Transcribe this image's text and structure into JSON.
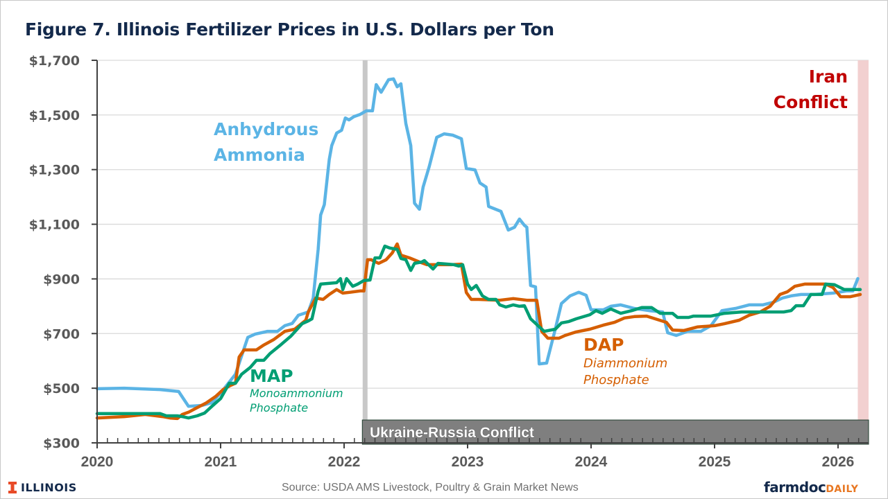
{
  "colors": {
    "anhydrous": "#5bb4e5",
    "dap": "#d55e00",
    "map": "#009e73",
    "title": "#13294b",
    "iran": "#c00000",
    "iran_shade": "#f2d0d0",
    "ukraine_box": "#7f7f7f",
    "ukraine_line": "#c8c8c8",
    "axis_text": "#595959",
    "daily": "#e87722"
  },
  "footer": {
    "logo_left": "ILLINOIS",
    "source": "Source: USDA AMS Livestock, Poultry & Grain Market News",
    "logo_right_main": "farmdoc",
    "logo_right_accent": "DAILY"
  },
  "chart_data": {
    "type": "line",
    "title": "Figure 7. Illinois Fertilizer Prices in U.S. Dollars per Ton",
    "xlabel": "",
    "ylabel": "",
    "xlim": [
      2020,
      2026.25
    ],
    "ylim": [
      300,
      1700
    ],
    "x_ticks": [
      2020,
      2021,
      2022,
      2023,
      2024,
      2025,
      2026
    ],
    "x_tick_labels": [
      "2020",
      "2021",
      "2022",
      "2023",
      "2024",
      "2025",
      "2026"
    ],
    "y_ticks": [
      300,
      500,
      700,
      900,
      1100,
      1300,
      1500,
      1700
    ],
    "y_tick_labels": [
      "$300",
      "$500",
      "$700",
      "$900",
      "$1,100",
      "$1,300",
      "$1,500",
      "$1,700"
    ],
    "grid": "horizontal",
    "legend": "none (inline labels)",
    "annotations": {
      "anhydrous_line1": "Anhydrous",
      "anhydrous_line2": "Ammonia",
      "map_title": "MAP",
      "map_sub1": "Monoammonium",
      "map_sub2": "Phosphate",
      "dap_title": "DAP",
      "dap_sub1": "Diammonium",
      "dap_sub2": "Phosphate",
      "iran_line1": "Iran",
      "iran_line2": "Conflict",
      "ukraine": "Ukraine-Russia Conflict"
    },
    "events": {
      "ukraine_start": 2022.17,
      "iran_start": 2026.16
    },
    "series": [
      {
        "name": "Anhydrous Ammonia",
        "key": "anhydrous",
        "points": [
          [
            2020.0,
            498
          ],
          [
            2020.22,
            500
          ],
          [
            2020.51,
            495
          ],
          [
            2020.62,
            490
          ],
          [
            2020.66,
            488
          ],
          [
            2020.74,
            434
          ],
          [
            2020.85,
            437
          ],
          [
            2020.93,
            447
          ],
          [
            2021.01,
            488
          ],
          [
            2021.12,
            551
          ],
          [
            2021.22,
            686
          ],
          [
            2021.28,
            698
          ],
          [
            2021.38,
            708
          ],
          [
            2021.46,
            708
          ],
          [
            2021.52,
            729
          ],
          [
            2021.58,
            737
          ],
          [
            2021.63,
            767
          ],
          [
            2021.71,
            779
          ],
          [
            2021.75,
            830
          ],
          [
            2021.79,
            1008
          ],
          [
            2021.81,
            1134
          ],
          [
            2021.84,
            1172
          ],
          [
            2021.88,
            1337
          ],
          [
            2021.9,
            1388
          ],
          [
            2021.94,
            1434
          ],
          [
            2021.98,
            1444
          ],
          [
            2022.01,
            1489
          ],
          [
            2022.04,
            1482
          ],
          [
            2022.08,
            1494
          ],
          [
            2022.13,
            1502
          ],
          [
            2022.18,
            1515
          ],
          [
            2022.23,
            1515
          ],
          [
            2022.26,
            1611
          ],
          [
            2022.3,
            1583
          ],
          [
            2022.36,
            1629
          ],
          [
            2022.4,
            1632
          ],
          [
            2022.43,
            1603
          ],
          [
            2022.46,
            1614
          ],
          [
            2022.5,
            1469
          ],
          [
            2022.54,
            1388
          ],
          [
            2022.57,
            1177
          ],
          [
            2022.61,
            1155
          ],
          [
            2022.64,
            1236
          ],
          [
            2022.69,
            1312
          ],
          [
            2022.75,
            1418
          ],
          [
            2022.81,
            1431
          ],
          [
            2022.88,
            1426
          ],
          [
            2022.95,
            1413
          ],
          [
            2022.99,
            1304
          ],
          [
            2023.06,
            1299
          ],
          [
            2023.1,
            1251
          ],
          [
            2023.15,
            1236
          ],
          [
            2023.17,
            1165
          ],
          [
            2023.27,
            1147
          ],
          [
            2023.33,
            1079
          ],
          [
            2023.38,
            1089
          ],
          [
            2023.42,
            1119
          ],
          [
            2023.46,
            1096
          ],
          [
            2023.48,
            1089
          ],
          [
            2023.51,
            876
          ],
          [
            2023.55,
            871
          ],
          [
            2023.58,
            589
          ],
          [
            2023.64,
            592
          ],
          [
            2023.71,
            716
          ],
          [
            2023.76,
            810
          ],
          [
            2023.83,
            838
          ],
          [
            2023.9,
            851
          ],
          [
            2023.96,
            840
          ],
          [
            2024.0,
            787
          ],
          [
            2024.1,
            787
          ],
          [
            2024.16,
            800
          ],
          [
            2024.24,
            805
          ],
          [
            2024.35,
            792
          ],
          [
            2024.47,
            784
          ],
          [
            2024.58,
            779
          ],
          [
            2024.62,
            703
          ],
          [
            2024.69,
            693
          ],
          [
            2024.78,
            708
          ],
          [
            2024.89,
            708
          ],
          [
            2024.97,
            729
          ],
          [
            2025.06,
            784
          ],
          [
            2025.17,
            792
          ],
          [
            2025.28,
            805
          ],
          [
            2025.39,
            805
          ],
          [
            2025.48,
            815
          ],
          [
            2025.55,
            830
          ],
          [
            2025.62,
            838
          ],
          [
            2025.7,
            843
          ],
          [
            2025.81,
            843
          ],
          [
            2025.96,
            848
          ],
          [
            2026.07,
            856
          ],
          [
            2026.12,
            856
          ],
          [
            2026.16,
            901
          ]
        ]
      },
      {
        "name": "DAP (Diammonium Phosphate)",
        "key": "dap",
        "points": [
          [
            2020.0,
            391
          ],
          [
            2020.22,
            396
          ],
          [
            2020.39,
            404
          ],
          [
            2020.53,
            396
          ],
          [
            2020.59,
            391
          ],
          [
            2020.65,
            389
          ],
          [
            2020.69,
            404
          ],
          [
            2020.74,
            412
          ],
          [
            2020.81,
            429
          ],
          [
            2020.88,
            445
          ],
          [
            2020.96,
            470
          ],
          [
            2021.02,
            495
          ],
          [
            2021.07,
            508
          ],
          [
            2021.12,
            518
          ],
          [
            2021.15,
            614
          ],
          [
            2021.19,
            640
          ],
          [
            2021.29,
            640
          ],
          [
            2021.35,
            658
          ],
          [
            2021.43,
            678
          ],
          [
            2021.52,
            708
          ],
          [
            2021.6,
            716
          ],
          [
            2021.69,
            749
          ],
          [
            2021.71,
            779
          ],
          [
            2021.77,
            830
          ],
          [
            2021.83,
            825
          ],
          [
            2021.88,
            843
          ],
          [
            2021.94,
            861
          ],
          [
            2021.99,
            848
          ],
          [
            2022.05,
            851
          ],
          [
            2022.13,
            856
          ],
          [
            2022.16,
            856
          ],
          [
            2022.19,
            970
          ],
          [
            2022.22,
            970
          ],
          [
            2022.28,
            957
          ],
          [
            2022.34,
            970
          ],
          [
            2022.39,
            995
          ],
          [
            2022.43,
            1028
          ],
          [
            2022.46,
            987
          ],
          [
            2022.53,
            977
          ],
          [
            2022.61,
            962
          ],
          [
            2022.67,
            952
          ],
          [
            2022.87,
            952
          ],
          [
            2022.95,
            954
          ],
          [
            2022.99,
            850
          ],
          [
            2023.03,
            825
          ],
          [
            2023.09,
            825
          ],
          [
            2023.26,
            822
          ],
          [
            2023.37,
            828
          ],
          [
            2023.48,
            822
          ],
          [
            2023.56,
            822
          ],
          [
            2023.6,
            708
          ],
          [
            2023.65,
            683
          ],
          [
            2023.74,
            683
          ],
          [
            2023.79,
            693
          ],
          [
            2023.88,
            706
          ],
          [
            2023.99,
            716
          ],
          [
            2024.1,
            731
          ],
          [
            2024.19,
            741
          ],
          [
            2024.27,
            757
          ],
          [
            2024.35,
            762
          ],
          [
            2024.45,
            764
          ],
          [
            2024.61,
            741
          ],
          [
            2024.66,
            713
          ],
          [
            2024.75,
            711
          ],
          [
            2024.86,
            724
          ],
          [
            2025.0,
            729
          ],
          [
            2025.08,
            736
          ],
          [
            2025.2,
            749
          ],
          [
            2025.28,
            767
          ],
          [
            2025.37,
            779
          ],
          [
            2025.45,
            800
          ],
          [
            2025.53,
            843
          ],
          [
            2025.59,
            853
          ],
          [
            2025.65,
            873
          ],
          [
            2025.73,
            881
          ],
          [
            2025.84,
            881
          ],
          [
            2025.9,
            881
          ],
          [
            2025.96,
            868
          ],
          [
            2026.02,
            835
          ],
          [
            2026.1,
            835
          ],
          [
            2026.18,
            843
          ]
        ]
      },
      {
        "name": "MAP (Monoammonium Phosphate)",
        "key": "map",
        "points": [
          [
            2020.0,
            407
          ],
          [
            2020.34,
            407
          ],
          [
            2020.51,
            407
          ],
          [
            2020.56,
            399
          ],
          [
            2020.65,
            399
          ],
          [
            2020.69,
            396
          ],
          [
            2020.74,
            391
          ],
          [
            2020.81,
            399
          ],
          [
            2020.87,
            409
          ],
          [
            2020.93,
            434
          ],
          [
            2021.0,
            462
          ],
          [
            2021.07,
            518
          ],
          [
            2021.12,
            518
          ],
          [
            2021.17,
            551
          ],
          [
            2021.24,
            576
          ],
          [
            2021.29,
            602
          ],
          [
            2021.35,
            602
          ],
          [
            2021.4,
            627
          ],
          [
            2021.49,
            660
          ],
          [
            2021.57,
            691
          ],
          [
            2021.66,
            736
          ],
          [
            2021.71,
            746
          ],
          [
            2021.74,
            754
          ],
          [
            2021.79,
            855
          ],
          [
            2021.81,
            881
          ],
          [
            2021.94,
            886
          ],
          [
            2021.97,
            901
          ],
          [
            2021.99,
            861
          ],
          [
            2022.02,
            901
          ],
          [
            2022.07,
            873
          ],
          [
            2022.11,
            881
          ],
          [
            2022.16,
            894
          ],
          [
            2022.21,
            896
          ],
          [
            2022.25,
            977
          ],
          [
            2022.29,
            977
          ],
          [
            2022.33,
            1020
          ],
          [
            2022.37,
            1013
          ],
          [
            2022.43,
            1008
          ],
          [
            2022.46,
            975
          ],
          [
            2022.5,
            970
          ],
          [
            2022.54,
            931
          ],
          [
            2022.57,
            957
          ],
          [
            2022.63,
            962
          ],
          [
            2022.65,
            967
          ],
          [
            2022.72,
            936
          ],
          [
            2022.76,
            957
          ],
          [
            2022.89,
            952
          ],
          [
            2022.93,
            947
          ],
          [
            2022.96,
            952
          ],
          [
            2023.0,
            881
          ],
          [
            2023.03,
            861
          ],
          [
            2023.07,
            876
          ],
          [
            2023.12,
            838
          ],
          [
            2023.17,
            825
          ],
          [
            2023.23,
            825
          ],
          [
            2023.26,
            805
          ],
          [
            2023.31,
            797
          ],
          [
            2023.37,
            805
          ],
          [
            2023.42,
            800
          ],
          [
            2023.46,
            802
          ],
          [
            2023.51,
            754
          ],
          [
            2023.57,
            729
          ],
          [
            2023.62,
            708
          ],
          [
            2023.71,
            716
          ],
          [
            2023.76,
            739
          ],
          [
            2023.82,
            744
          ],
          [
            2023.88,
            754
          ],
          [
            2023.99,
            769
          ],
          [
            2024.04,
            784
          ],
          [
            2024.09,
            774
          ],
          [
            2024.16,
            790
          ],
          [
            2024.24,
            774
          ],
          [
            2024.33,
            784
          ],
          [
            2024.41,
            795
          ],
          [
            2024.49,
            795
          ],
          [
            2024.56,
            774
          ],
          [
            2024.66,
            774
          ],
          [
            2024.7,
            759
          ],
          [
            2024.79,
            759
          ],
          [
            2024.83,
            764
          ],
          [
            2024.97,
            764
          ],
          [
            2025.08,
            774
          ],
          [
            2025.22,
            779
          ],
          [
            2025.39,
            779
          ],
          [
            2025.56,
            779
          ],
          [
            2025.62,
            784
          ],
          [
            2025.66,
            802
          ],
          [
            2025.72,
            802
          ],
          [
            2025.78,
            843
          ],
          [
            2025.87,
            843
          ],
          [
            2025.9,
            881
          ],
          [
            2025.97,
            879
          ],
          [
            2026.05,
            861
          ],
          [
            2026.18,
            861
          ]
        ]
      }
    ]
  }
}
